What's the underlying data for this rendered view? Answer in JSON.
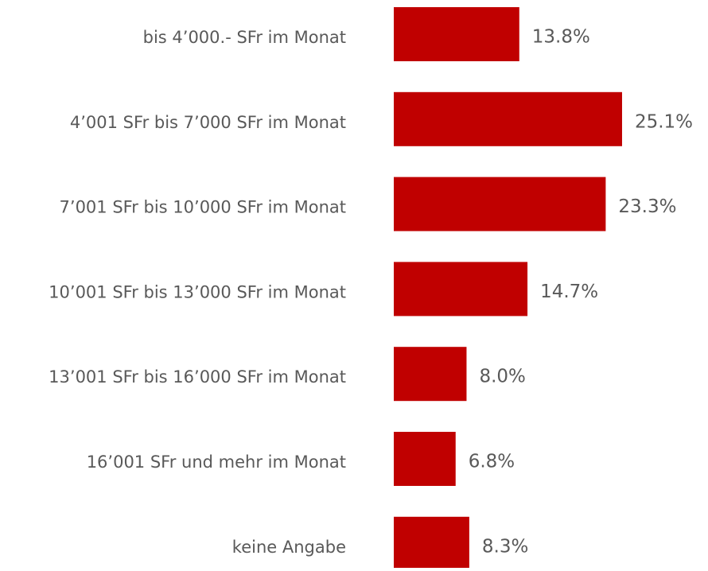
{
  "chart_data": {
    "type": "bar",
    "orientation": "horizontal",
    "categories": [
      "bis 4’000.- SFr im Monat",
      "4’001 SFr bis 7’000 SFr im Monat",
      "7’001 SFr bis 10’000 SFr im Monat",
      "10’001 SFr bis 13’000 SFr im Monat",
      "13’001 SFr bis 16’000 SFr im Monat",
      "16’001 SFr und mehr im Monat",
      "keine Angabe"
    ],
    "values": [
      13.8,
      25.1,
      23.3,
      14.7,
      8.0,
      6.8,
      8.3
    ],
    "value_labels": [
      "13.8%",
      "25.1%",
      "23.3%",
      "14.7%",
      "8.0%",
      "6.8%",
      "8.3%"
    ],
    "color": "#c00000",
    "xlim": [
      0,
      30
    ]
  }
}
